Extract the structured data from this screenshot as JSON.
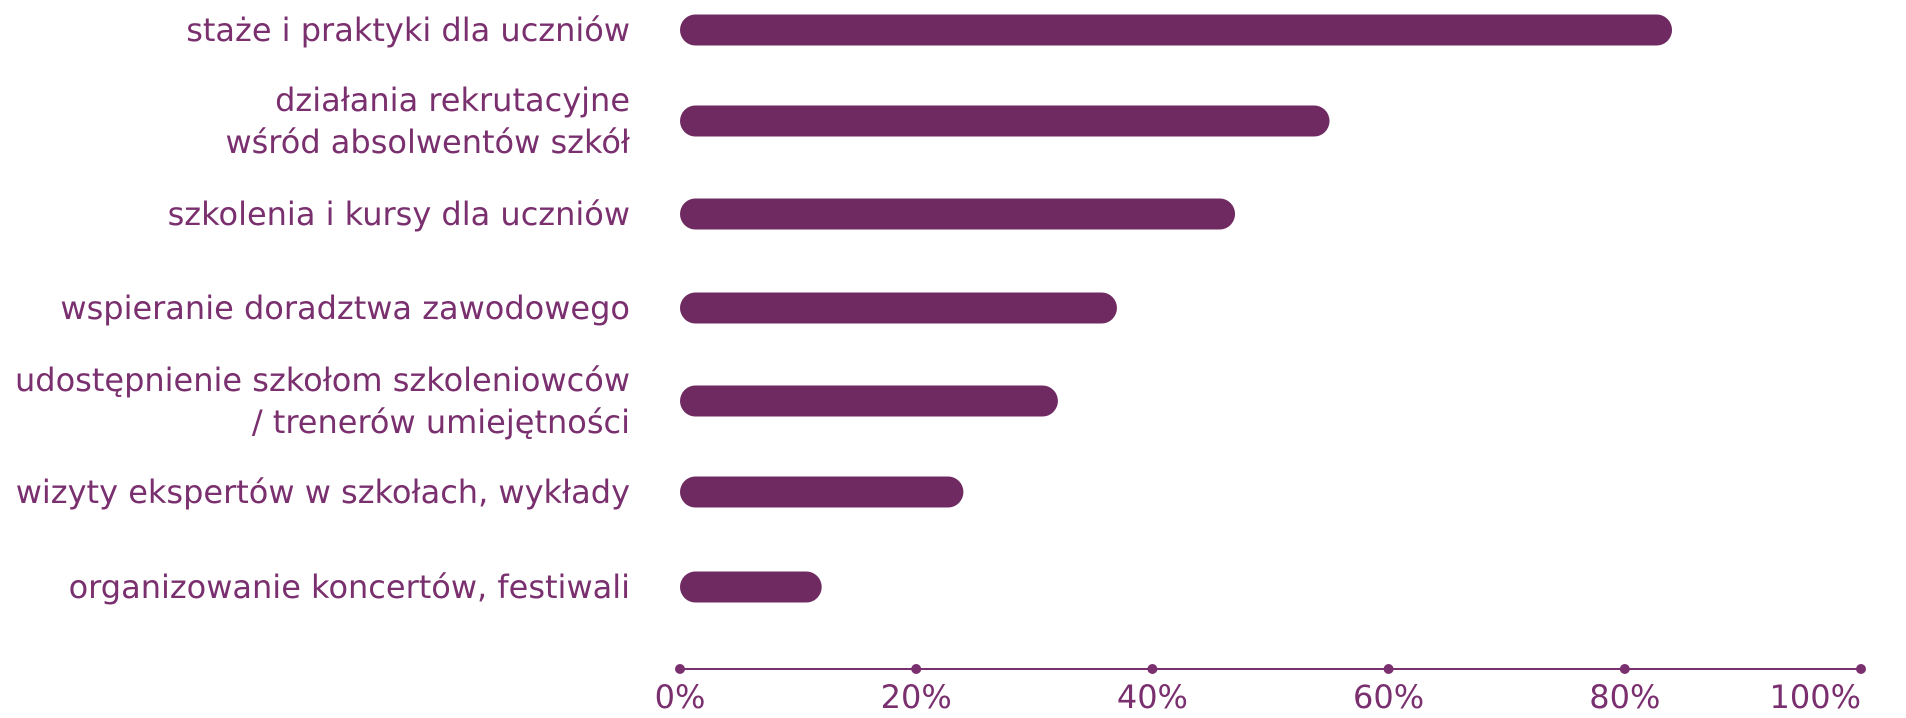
{
  "chart_data": {
    "type": "bar",
    "orientation": "horizontal",
    "categories": [
      [
        "staże i praktyki dla uczniów"
      ],
      [
        "działania rekrutacyjne",
        "wśród absolwentów szkół"
      ],
      [
        "szkolenia i kursy dla uczniów"
      ],
      [
        "wspieranie doradztwa zawodowego"
      ],
      [
        "udostępnienie szkołom szkoleniowców",
        "/ trenerów umiejętności"
      ],
      [
        "wizyty ekspertów w szkołach, wykłady"
      ],
      [
        "organizowanie koncertów, festiwali"
      ]
    ],
    "values": [
      84,
      55,
      47,
      37,
      32,
      24,
      12
    ],
    "unit": "%",
    "xlim": [
      0,
      100
    ],
    "x_ticks": [
      0,
      20,
      40,
      60,
      80,
      100
    ],
    "x_tick_labels": [
      "0%",
      "20%",
      "40%",
      "60%",
      "80%",
      "100%"
    ],
    "grid": false,
    "legend": "none",
    "title": "",
    "xlabel": "",
    "ylabel": "",
    "colors": {
      "bar": "#6f2a61",
      "axis": "#7a2f6e",
      "text": "#7a2f6e"
    }
  }
}
